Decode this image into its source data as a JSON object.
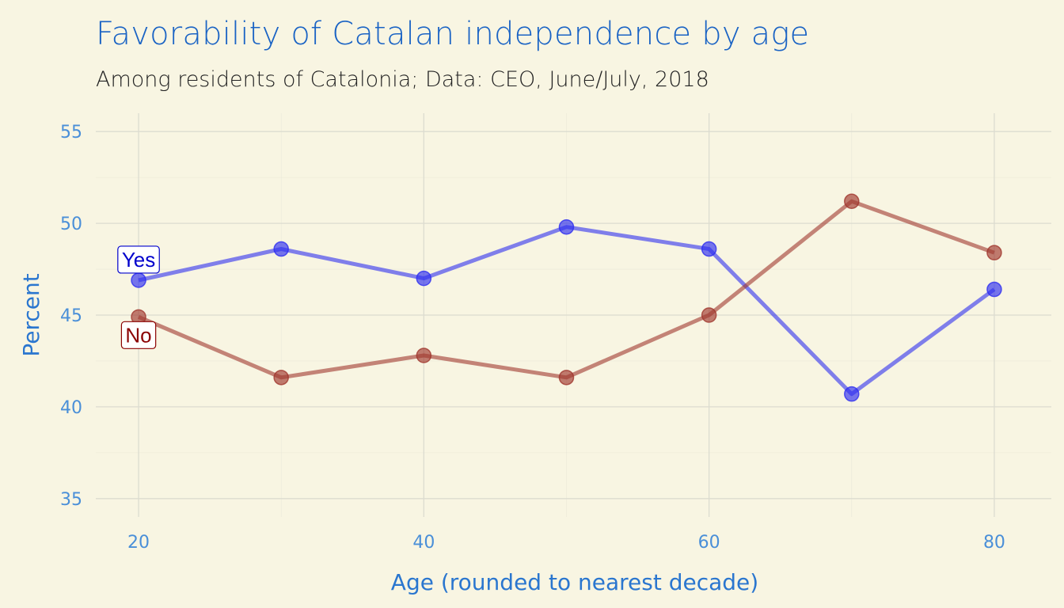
{
  "chart_data": {
    "type": "line",
    "title": "Favorability of Catalan independence by age",
    "subtitle": "Among residents of Catalonia; Data: CEO, June/July, 2018",
    "xlabel": "Age (rounded to nearest decade)",
    "ylabel": "Percent",
    "x": [
      20,
      30,
      40,
      50,
      60,
      70,
      80
    ],
    "xticks": [
      20,
      40,
      60,
      80
    ],
    "yticks": [
      35,
      40,
      45,
      50,
      55
    ],
    "xlim": [
      17,
      84
    ],
    "ylim": [
      34,
      56
    ],
    "grid": true,
    "legend": "none",
    "series": [
      {
        "name": "Yes",
        "color": "#2e2ef0",
        "label_color": "#0000cc",
        "values": [
          46.9,
          48.6,
          47.0,
          49.8,
          48.6,
          40.7,
          46.4
        ]
      },
      {
        "name": "No",
        "color": "#a0372e",
        "label_color": "#8b0000",
        "values": [
          44.9,
          41.6,
          42.8,
          41.6,
          45.0,
          51.2,
          48.4
        ]
      }
    ]
  },
  "colors": {
    "background": "#f8f5e2",
    "grid": "#dcdcd0",
    "title": "#1a63c4",
    "tick_labels": "#4a8fd8"
  }
}
